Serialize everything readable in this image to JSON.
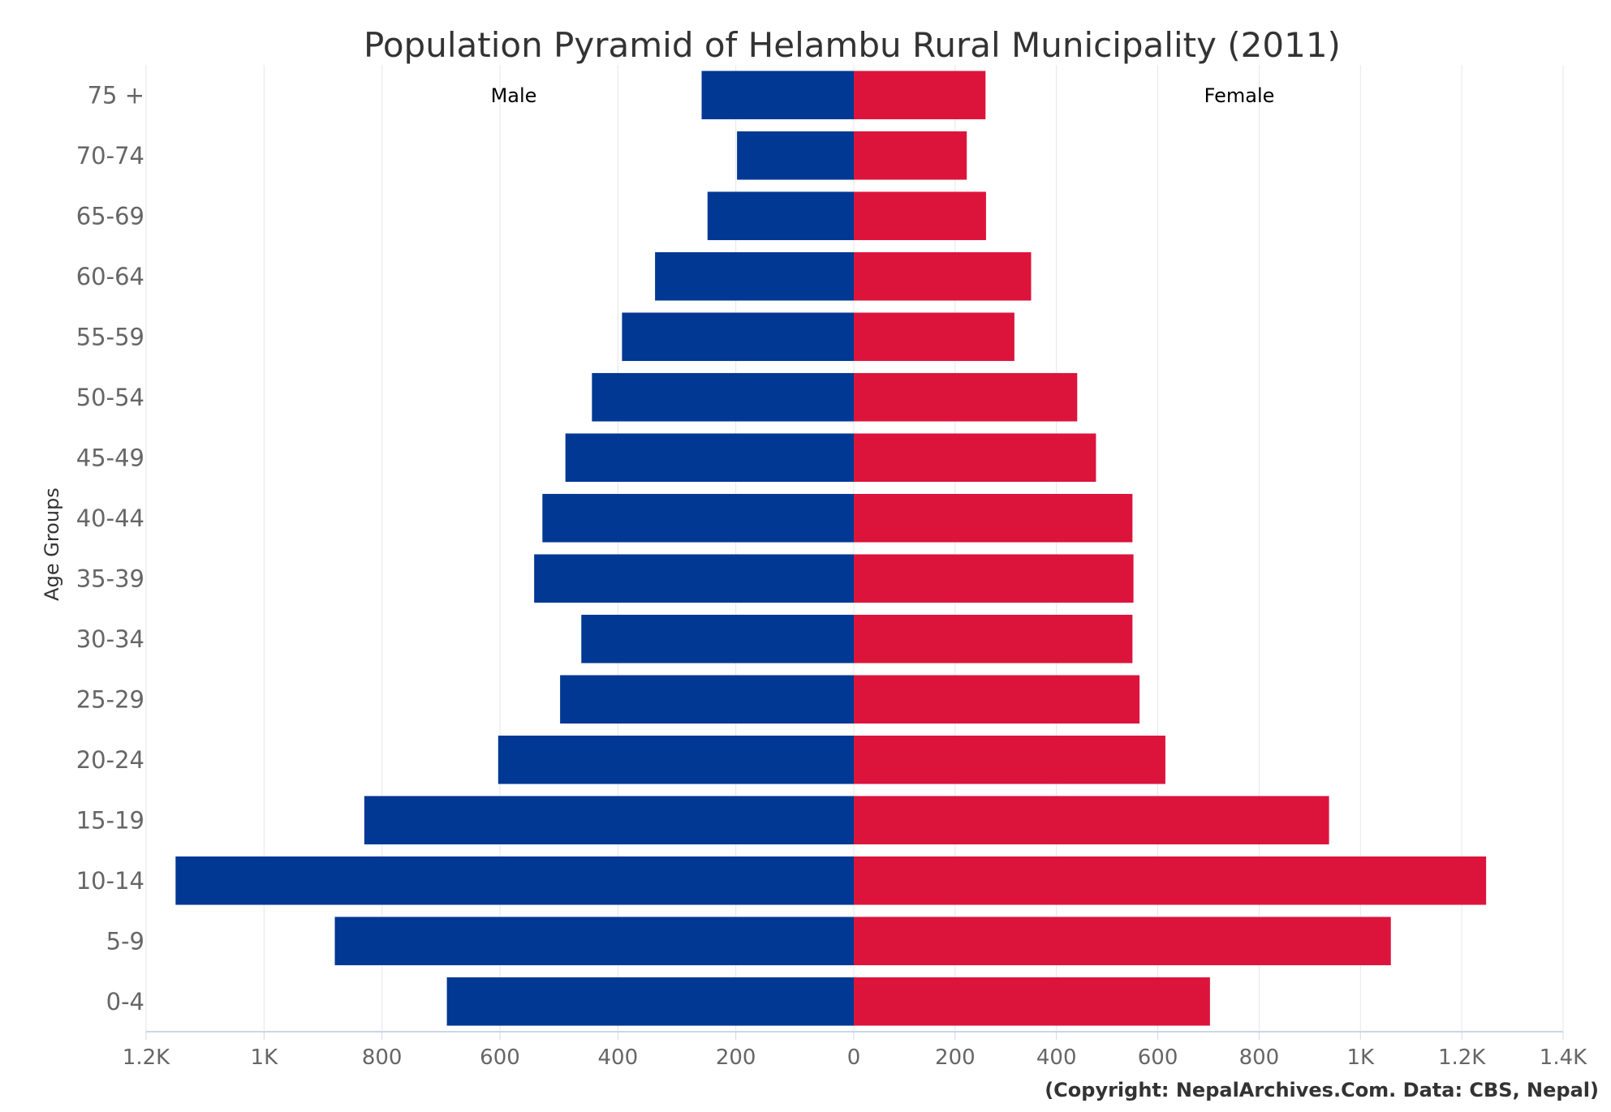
{
  "chart_data": {
    "type": "bar",
    "orientation": "horizontal",
    "title": "Population Pyramid of Helambu Rural Municipality (2011)",
    "ylabel": "Age Groups",
    "xlabel": "",
    "categories": [
      "0-4",
      "5-9",
      "10-14",
      "15-19",
      "20-24",
      "25-29",
      "30-34",
      "35-39",
      "40-44",
      "45-49",
      "50-54",
      "55-59",
      "60-64",
      "65-69",
      "70-74",
      "75 +"
    ],
    "series": [
      {
        "name": "Male",
        "color": "#003893",
        "values": [
          690,
          880,
          1150,
          830,
          603,
          498,
          462,
          542,
          528,
          489,
          444,
          393,
          337,
          248,
          198,
          258
        ]
      },
      {
        "name": "Female",
        "color": "#DC143C",
        "values": [
          703,
          1060,
          1248,
          938,
          615,
          564,
          550,
          552,
          550,
          478,
          441,
          317,
          350,
          261,
          223,
          260
        ]
      }
    ],
    "x_ticks_left": [
      "1.2K",
      "1K",
      "800",
      "600",
      "400",
      "200"
    ],
    "x_ticks_right": [
      "0",
      "200",
      "400",
      "600",
      "800",
      "1K",
      "1.2K",
      "1.4K"
    ],
    "xlim_left": [
      1200,
      0
    ],
    "xlim_right": [
      0,
      1400
    ],
    "grid": true,
    "side_labels": {
      "left": "Male",
      "right": "Female"
    }
  },
  "credit": "(Copyright: NepalArchives.Com. Data: CBS, Nepal)"
}
